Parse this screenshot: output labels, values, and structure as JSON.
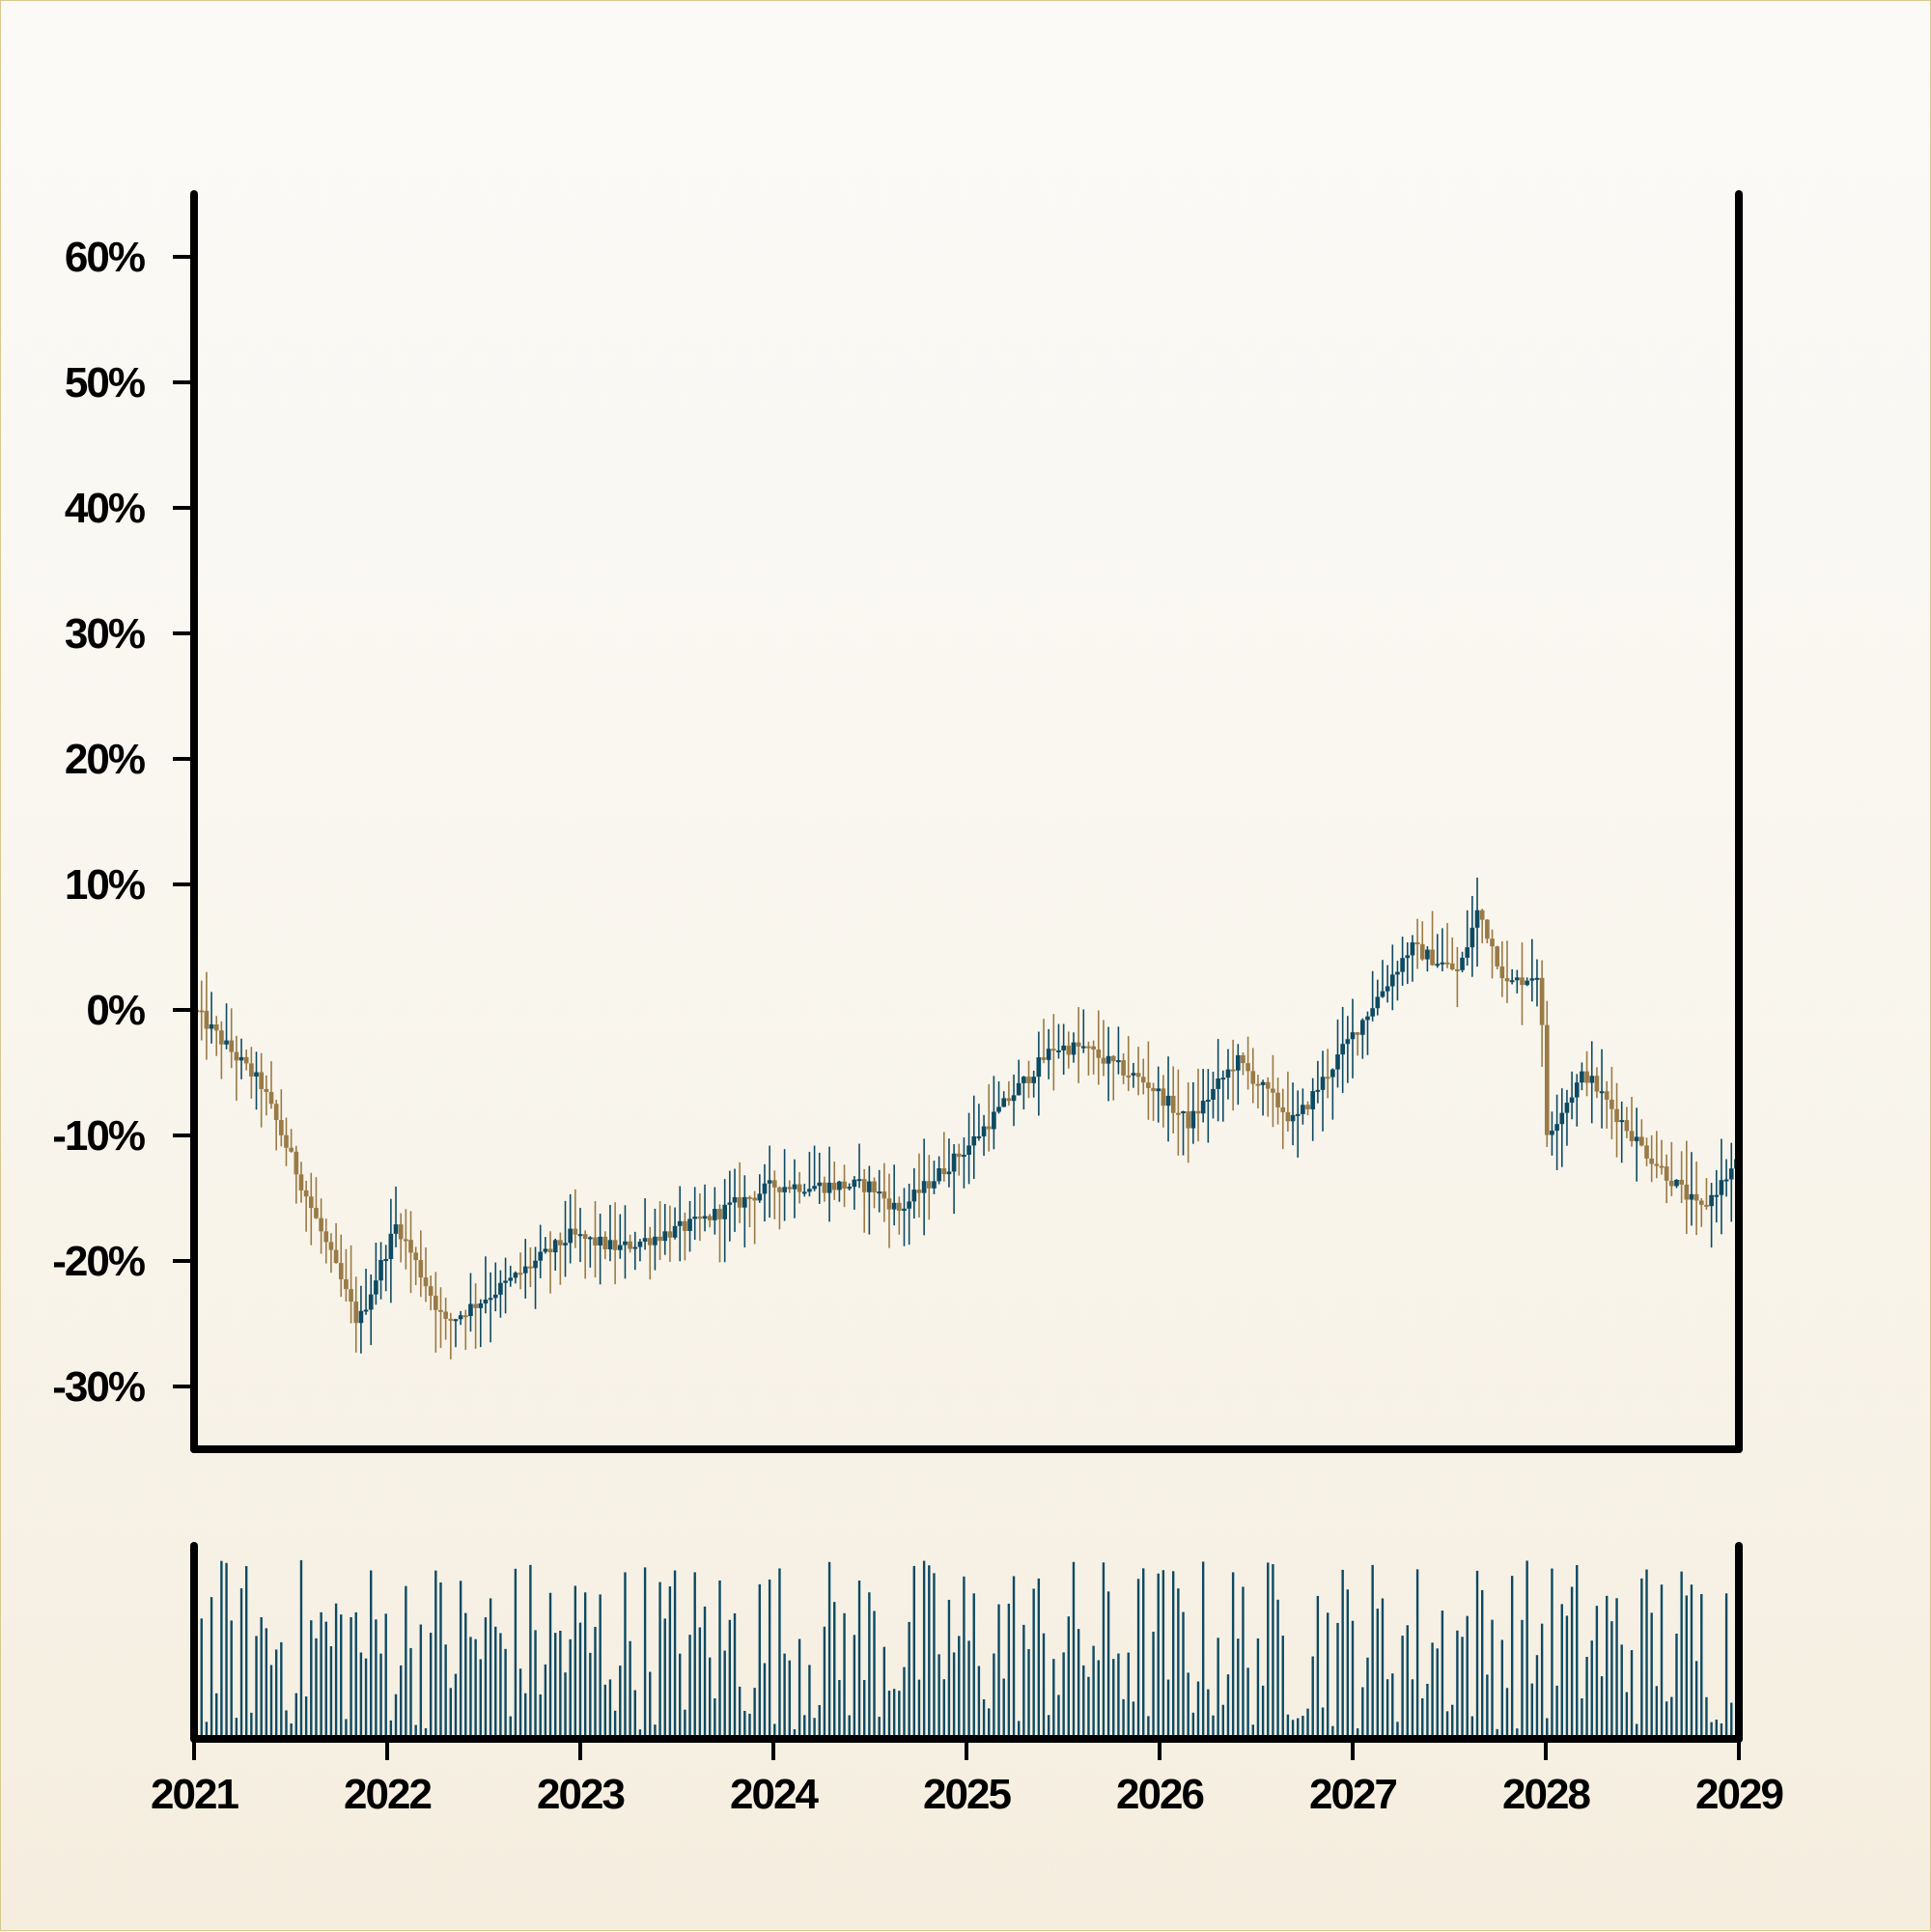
{
  "chart_data": {
    "type": "ohlc",
    "title": "",
    "xlabel": "",
    "ylabel": "",
    "y_format": "percent",
    "ylim": [
      -35,
      65
    ],
    "yticks": [
      60,
      50,
      40,
      30,
      20,
      10,
      0,
      -10,
      -20,
      -30
    ],
    "ytick_labels": [
      "60%",
      "50%",
      "40%",
      "30%",
      "20%",
      "10%",
      "0%",
      "-10%",
      "-20%",
      "-30%"
    ],
    "xlim": [
      2021,
      2029
    ],
    "xticks": [
      2021,
      2022,
      2023,
      2024,
      2025,
      2026,
      2027,
      2028,
      2029
    ],
    "xtick_labels": [
      "2021",
      "2022",
      "2023",
      "2024",
      "2025",
      "2026",
      "2027",
      "2028",
      "2029"
    ],
    "grid": false,
    "legend": "none",
    "colors": {
      "up": "#0d4a63",
      "down": "#9a7a45",
      "volume": "#0d4a63",
      "axis": "#000000"
    },
    "path_anchors": {
      "time": [
        2021.0,
        2021.35,
        2021.85,
        2022.05,
        2022.3,
        2022.6,
        2022.95,
        2023.2,
        2023.6,
        2024.0,
        2024.5,
        2024.65,
        2025.0,
        2025.45,
        2025.6,
        2025.95,
        2026.15,
        2026.4,
        2026.7,
        2027.0,
        2027.3,
        2027.55,
        2027.65,
        2027.8,
        2027.97,
        2028.0,
        2028.2,
        2028.5,
        2028.8,
        2029.0
      ],
      "close": [
        0,
        -6,
        -25,
        -17,
        -25,
        -22,
        -18,
        -19,
        -17,
        -14,
        -14,
        -16,
        -11,
        -3,
        -3,
        -6,
        -9,
        -4,
        -9,
        -2,
        5,
        3,
        8,
        2,
        3,
        -10,
        -5,
        -11,
        -16,
        -12
      ]
    },
    "volume": {
      "relative_range": [
        0.05,
        1.0
      ],
      "n_bars": 310
    }
  }
}
